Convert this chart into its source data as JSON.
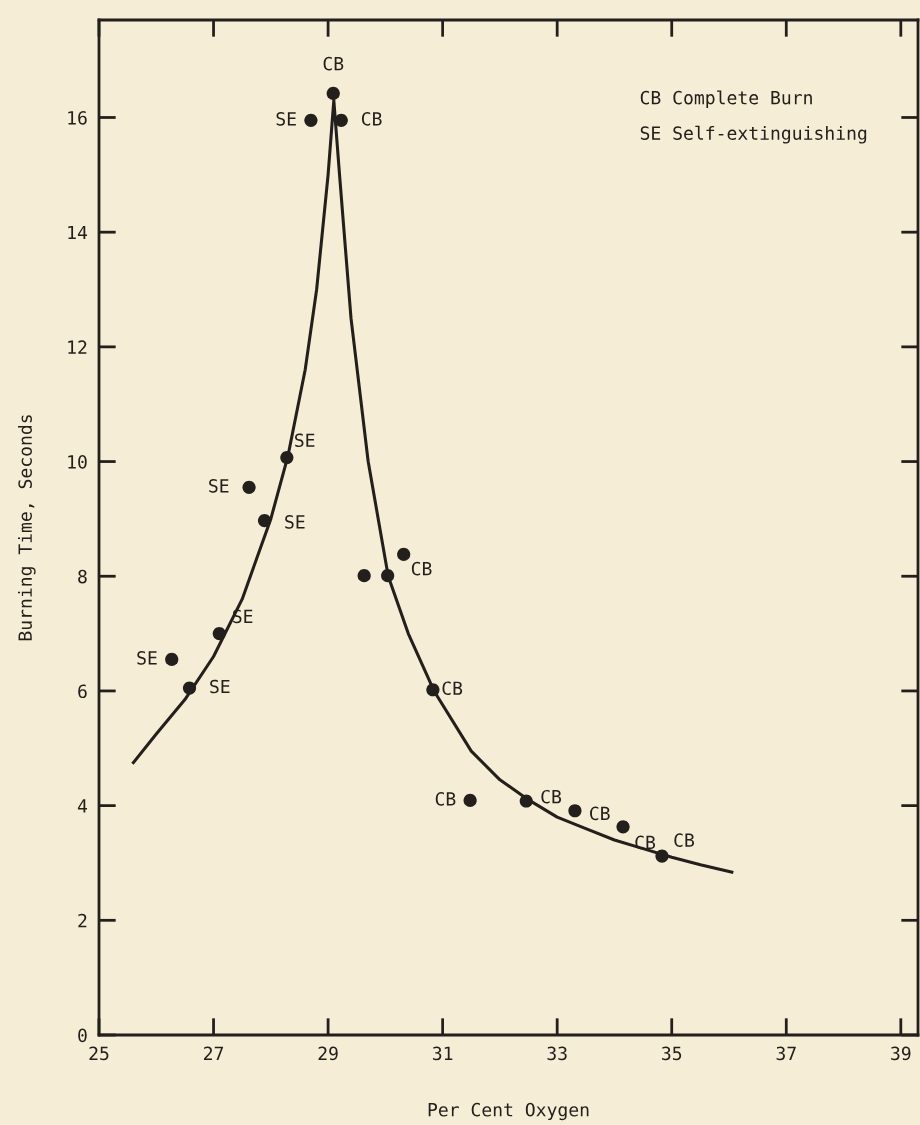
{
  "chart_data": {
    "type": "scatter",
    "xlabel": "Per Cent Oxygen",
    "ylabel": "Burning Time, Seconds",
    "xlim": [
      25,
      39.3
    ],
    "ylim": [
      0,
      17.7
    ],
    "xticks": [
      25,
      27,
      29,
      31,
      33,
      35,
      37,
      39
    ],
    "yticks": [
      0,
      2,
      4,
      6,
      8,
      10,
      12,
      14,
      16
    ],
    "grid": false,
    "legend": false,
    "series": [
      {
        "marker": "circle",
        "color": "#231f1c",
        "x": [
          29.09,
          28.7,
          29.23,
          28.28,
          27.62,
          27.89,
          29.63,
          30.04,
          30.32,
          30.83,
          31.48,
          32.46,
          33.31,
          34.15,
          34.83,
          26.27,
          27.1,
          26.58
        ],
        "values": [
          16.42,
          15.95,
          15.95,
          10.07,
          9.55,
          8.97,
          8.01,
          8.01,
          8.38,
          6.02,
          4.09,
          4.08,
          3.91,
          3.63,
          3.12,
          6.55,
          7.0,
          6.05
        ]
      },
      {
        "type": "line",
        "marker": "none",
        "color": "#231f1c",
        "line_style": "solid",
        "x": [
          25.6,
          26.0,
          26.5,
          27.0,
          27.5,
          28.0,
          28.3,
          28.6,
          28.8,
          29.0,
          29.1,
          29.2,
          29.4,
          29.7,
          30.05,
          30.4,
          30.85,
          31.5,
          32.0,
          32.5,
          33.0,
          33.5,
          34.0,
          34.5,
          35.0,
          35.5,
          36.05
        ],
        "values": [
          4.75,
          5.25,
          5.85,
          6.6,
          7.6,
          9.0,
          10.1,
          11.6,
          13.0,
          15.0,
          16.3,
          15.0,
          12.5,
          10.0,
          8.0,
          7.0,
          6.0,
          4.95,
          4.45,
          4.1,
          3.8,
          3.6,
          3.4,
          3.25,
          3.1,
          2.97,
          2.84
        ]
      }
    ],
    "annotations": [
      {
        "text": "CB",
        "x": 29.09,
        "y": 16.42
      },
      {
        "text": "SE",
        "x": 28.7,
        "y": 15.95
      },
      {
        "text": "CB",
        "x": 29.23,
        "y": 15.95
      },
      {
        "text": "SE",
        "x": 28.28,
        "y": 10.07
      },
      {
        "text": "SE",
        "x": 27.62,
        "y": 9.55
      },
      {
        "text": "SE",
        "x": 27.89,
        "y": 8.97
      },
      {
        "text": "CB",
        "x": 30.32,
        "y": 8.38
      },
      {
        "text": "CB",
        "x": 30.83,
        "y": 6.02
      },
      {
        "text": "CB",
        "x": 31.48,
        "y": 4.09
      },
      {
        "text": "CB",
        "x": 32.46,
        "y": 4.08
      },
      {
        "text": "CB",
        "x": 33.31,
        "y": 3.91
      },
      {
        "text": "CB",
        "x": 34.15,
        "y": 3.63
      },
      {
        "text": "CB",
        "x": 34.83,
        "y": 3.12
      },
      {
        "text": "SE",
        "x": 26.27,
        "y": 6.55
      },
      {
        "text": "SE",
        "x": 27.1,
        "y": 7.0
      },
      {
        "text": "SE",
        "x": 26.58,
        "y": 6.05
      },
      "CB Complete Burn",
      "SE Self-extinguishing"
    ]
  }
}
